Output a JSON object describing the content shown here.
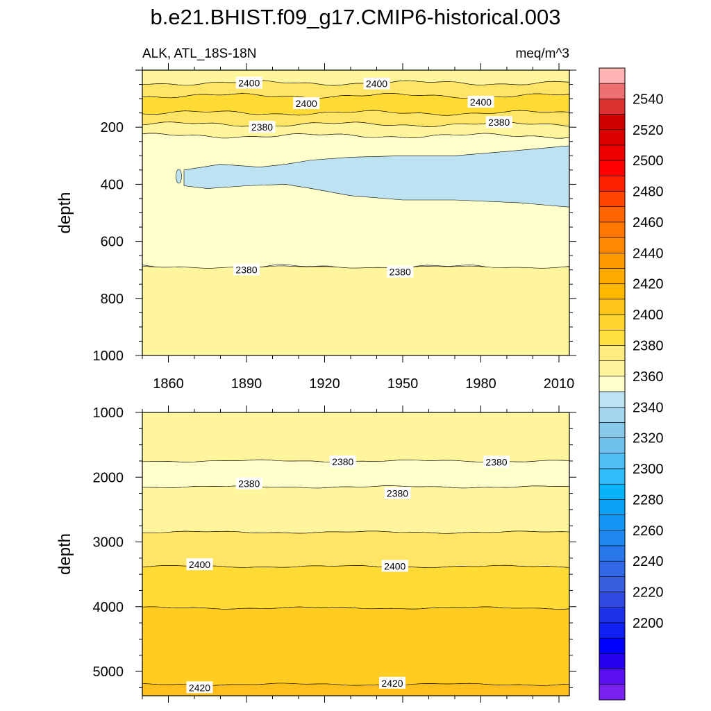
{
  "title": "b.e21.BHIST.f09_g17.CMIP6-historical.003",
  "subtitle_left": "ALK, ATL_18S-18N",
  "subtitle_right": "meq/m^3",
  "chart_data": [
    {
      "type": "heatmap",
      "panel": "upper",
      "variable": "ALK",
      "region": "ATL_18S-18N",
      "units": "meq/m^3",
      "xlabel": "",
      "ylabel": "depth",
      "xlim": [
        1850,
        2014
      ],
      "ylim": [
        1000,
        0
      ],
      "x_ticks": [
        1860,
        1890,
        1920,
        1950,
        1980,
        2010
      ],
      "y_ticks": [
        200,
        400,
        600,
        800,
        1000
      ],
      "bands": [
        {
          "level": "2380-2390",
          "top_depth": 0,
          "bottom_depth": 45,
          "color": "#fff59d"
        },
        {
          "level": "2390-2400",
          "top_depth": 45,
          "bottom_depth": 90,
          "color": "#ffe566"
        },
        {
          "level": "2400-2410",
          "top_depth": 90,
          "bottom_depth": 150,
          "color": "#ffdb33"
        },
        {
          "level": "2390-2400",
          "top_depth": 150,
          "bottom_depth": 190,
          "color": "#ffe566"
        },
        {
          "level": "2380-2390",
          "top_depth": 190,
          "bottom_depth": 230,
          "color": "#fff59d"
        },
        {
          "level": "2370-2380",
          "top_depth": 230,
          "bottom_depth": 690,
          "color": "#ffffcc"
        },
        {
          "level": "2380-2390",
          "top_depth": 690,
          "bottom_depth": 1000,
          "color": "#fff59d"
        }
      ],
      "low_region": {
        "level": "2360-2370",
        "color": "#bde3f2",
        "points": [
          [
            1866,
            350
          ],
          [
            1880,
            330
          ],
          [
            1895,
            340
          ],
          [
            1905,
            330
          ],
          [
            1915,
            315
          ],
          [
            1930,
            305
          ],
          [
            1950,
            300
          ],
          [
            1970,
            300
          ],
          [
            1990,
            285
          ],
          [
            2014,
            265
          ],
          [
            2014,
            480
          ],
          [
            1995,
            465
          ],
          [
            1970,
            455
          ],
          [
            1950,
            455
          ],
          [
            1930,
            440
          ],
          [
            1915,
            415
          ],
          [
            1905,
            400
          ],
          [
            1890,
            405
          ],
          [
            1875,
            415
          ],
          [
            1866,
            405
          ]
        ]
      },
      "contour_labels": [
        {
          "text": "2400",
          "x": 1891,
          "y": 45
        },
        {
          "text": "2400",
          "x": 1940,
          "y": 48
        },
        {
          "text": "2400",
          "x": 1913,
          "y": 117
        },
        {
          "text": "2400",
          "x": 1980,
          "y": 112
        },
        {
          "text": "2380",
          "x": 1896,
          "y": 200
        },
        {
          "text": "2380",
          "x": 1987,
          "y": 183
        },
        {
          "text": "2380",
          "x": 1890,
          "y": 700
        },
        {
          "text": "2380",
          "x": 1949,
          "y": 707
        }
      ]
    },
    {
      "type": "heatmap",
      "panel": "lower",
      "xlabel": "",
      "ylabel": "depth",
      "xlim": [
        1850,
        2014
      ],
      "ylim": [
        5375,
        1000
      ],
      "y_ticks": [
        1000,
        2000,
        3000,
        4000,
        5000
      ],
      "bands": [
        {
          "level": "2380-2390",
          "top_depth": 1000,
          "bottom_depth": 1750,
          "color": "#fff59d"
        },
        {
          "level": "2370-2380",
          "top_depth": 1750,
          "bottom_depth": 2150,
          "color": "#ffffcc"
        },
        {
          "level": "2380-2390",
          "top_depth": 2150,
          "bottom_depth": 2850,
          "color": "#fff59d"
        },
        {
          "level": "2390-2400",
          "top_depth": 2850,
          "bottom_depth": 3380,
          "color": "#ffe566"
        },
        {
          "level": "2400-2410",
          "top_depth": 3380,
          "bottom_depth": 4020,
          "color": "#ffdb33"
        },
        {
          "level": "2410-2420",
          "top_depth": 4020,
          "bottom_depth": 5200,
          "color": "#ffcc22"
        },
        {
          "level": "2420-2430",
          "top_depth": 5200,
          "bottom_depth": 5375,
          "color": "#ffbf1a"
        }
      ],
      "contour_labels": [
        {
          "text": "2380",
          "x": 1927,
          "y": 1760
        },
        {
          "text": "2380",
          "x": 1986,
          "y": 1765
        },
        {
          "text": "2380",
          "x": 1891,
          "y": 2100
        },
        {
          "text": "2380",
          "x": 1948,
          "y": 2250
        },
        {
          "text": "2400",
          "x": 1872,
          "y": 3350
        },
        {
          "text": "2400",
          "x": 1947,
          "y": 3375
        },
        {
          "text": "2420",
          "x": 1872,
          "y": 5250
        },
        {
          "text": "2420",
          "x": 1946,
          "y": 5180
        }
      ]
    }
  ],
  "colorbar": {
    "labels": [
      "2540",
      "2520",
      "2500",
      "2480",
      "2460",
      "2440",
      "2420",
      "2400",
      "2380",
      "2360",
      "2340",
      "2320",
      "2300",
      "2280",
      "2260",
      "2240",
      "2220",
      "2200"
    ],
    "colors": [
      "#ffb3b3",
      "#ee7070",
      "#dd3030",
      "#cc0000",
      "#dd0000",
      "#ee0000",
      "#ff0000",
      "#ff2200",
      "#ff4400",
      "#ff6600",
      "#ff7700",
      "#ff8800",
      "#ff9900",
      "#ffaa00",
      "#ffb800",
      "#ffc61a",
      "#ffd52e",
      "#ffe040",
      "#ffec80",
      "#fff59d",
      "#ffffcc",
      "#bde3f2",
      "#a3d6ee",
      "#89c9ea",
      "#6fc0ec",
      "#4fbef5",
      "#2ebdf8",
      "#08b4f8",
      "#0aa2f5",
      "#1496f4",
      "#1e88f0",
      "#2878ec",
      "#3068e6",
      "#3a5ee0",
      "#3148e0",
      "#1e32ec",
      "#0f20f0",
      "#0000ff",
      "#2800f0",
      "#5a10f0",
      "#7a22ee"
    ]
  }
}
